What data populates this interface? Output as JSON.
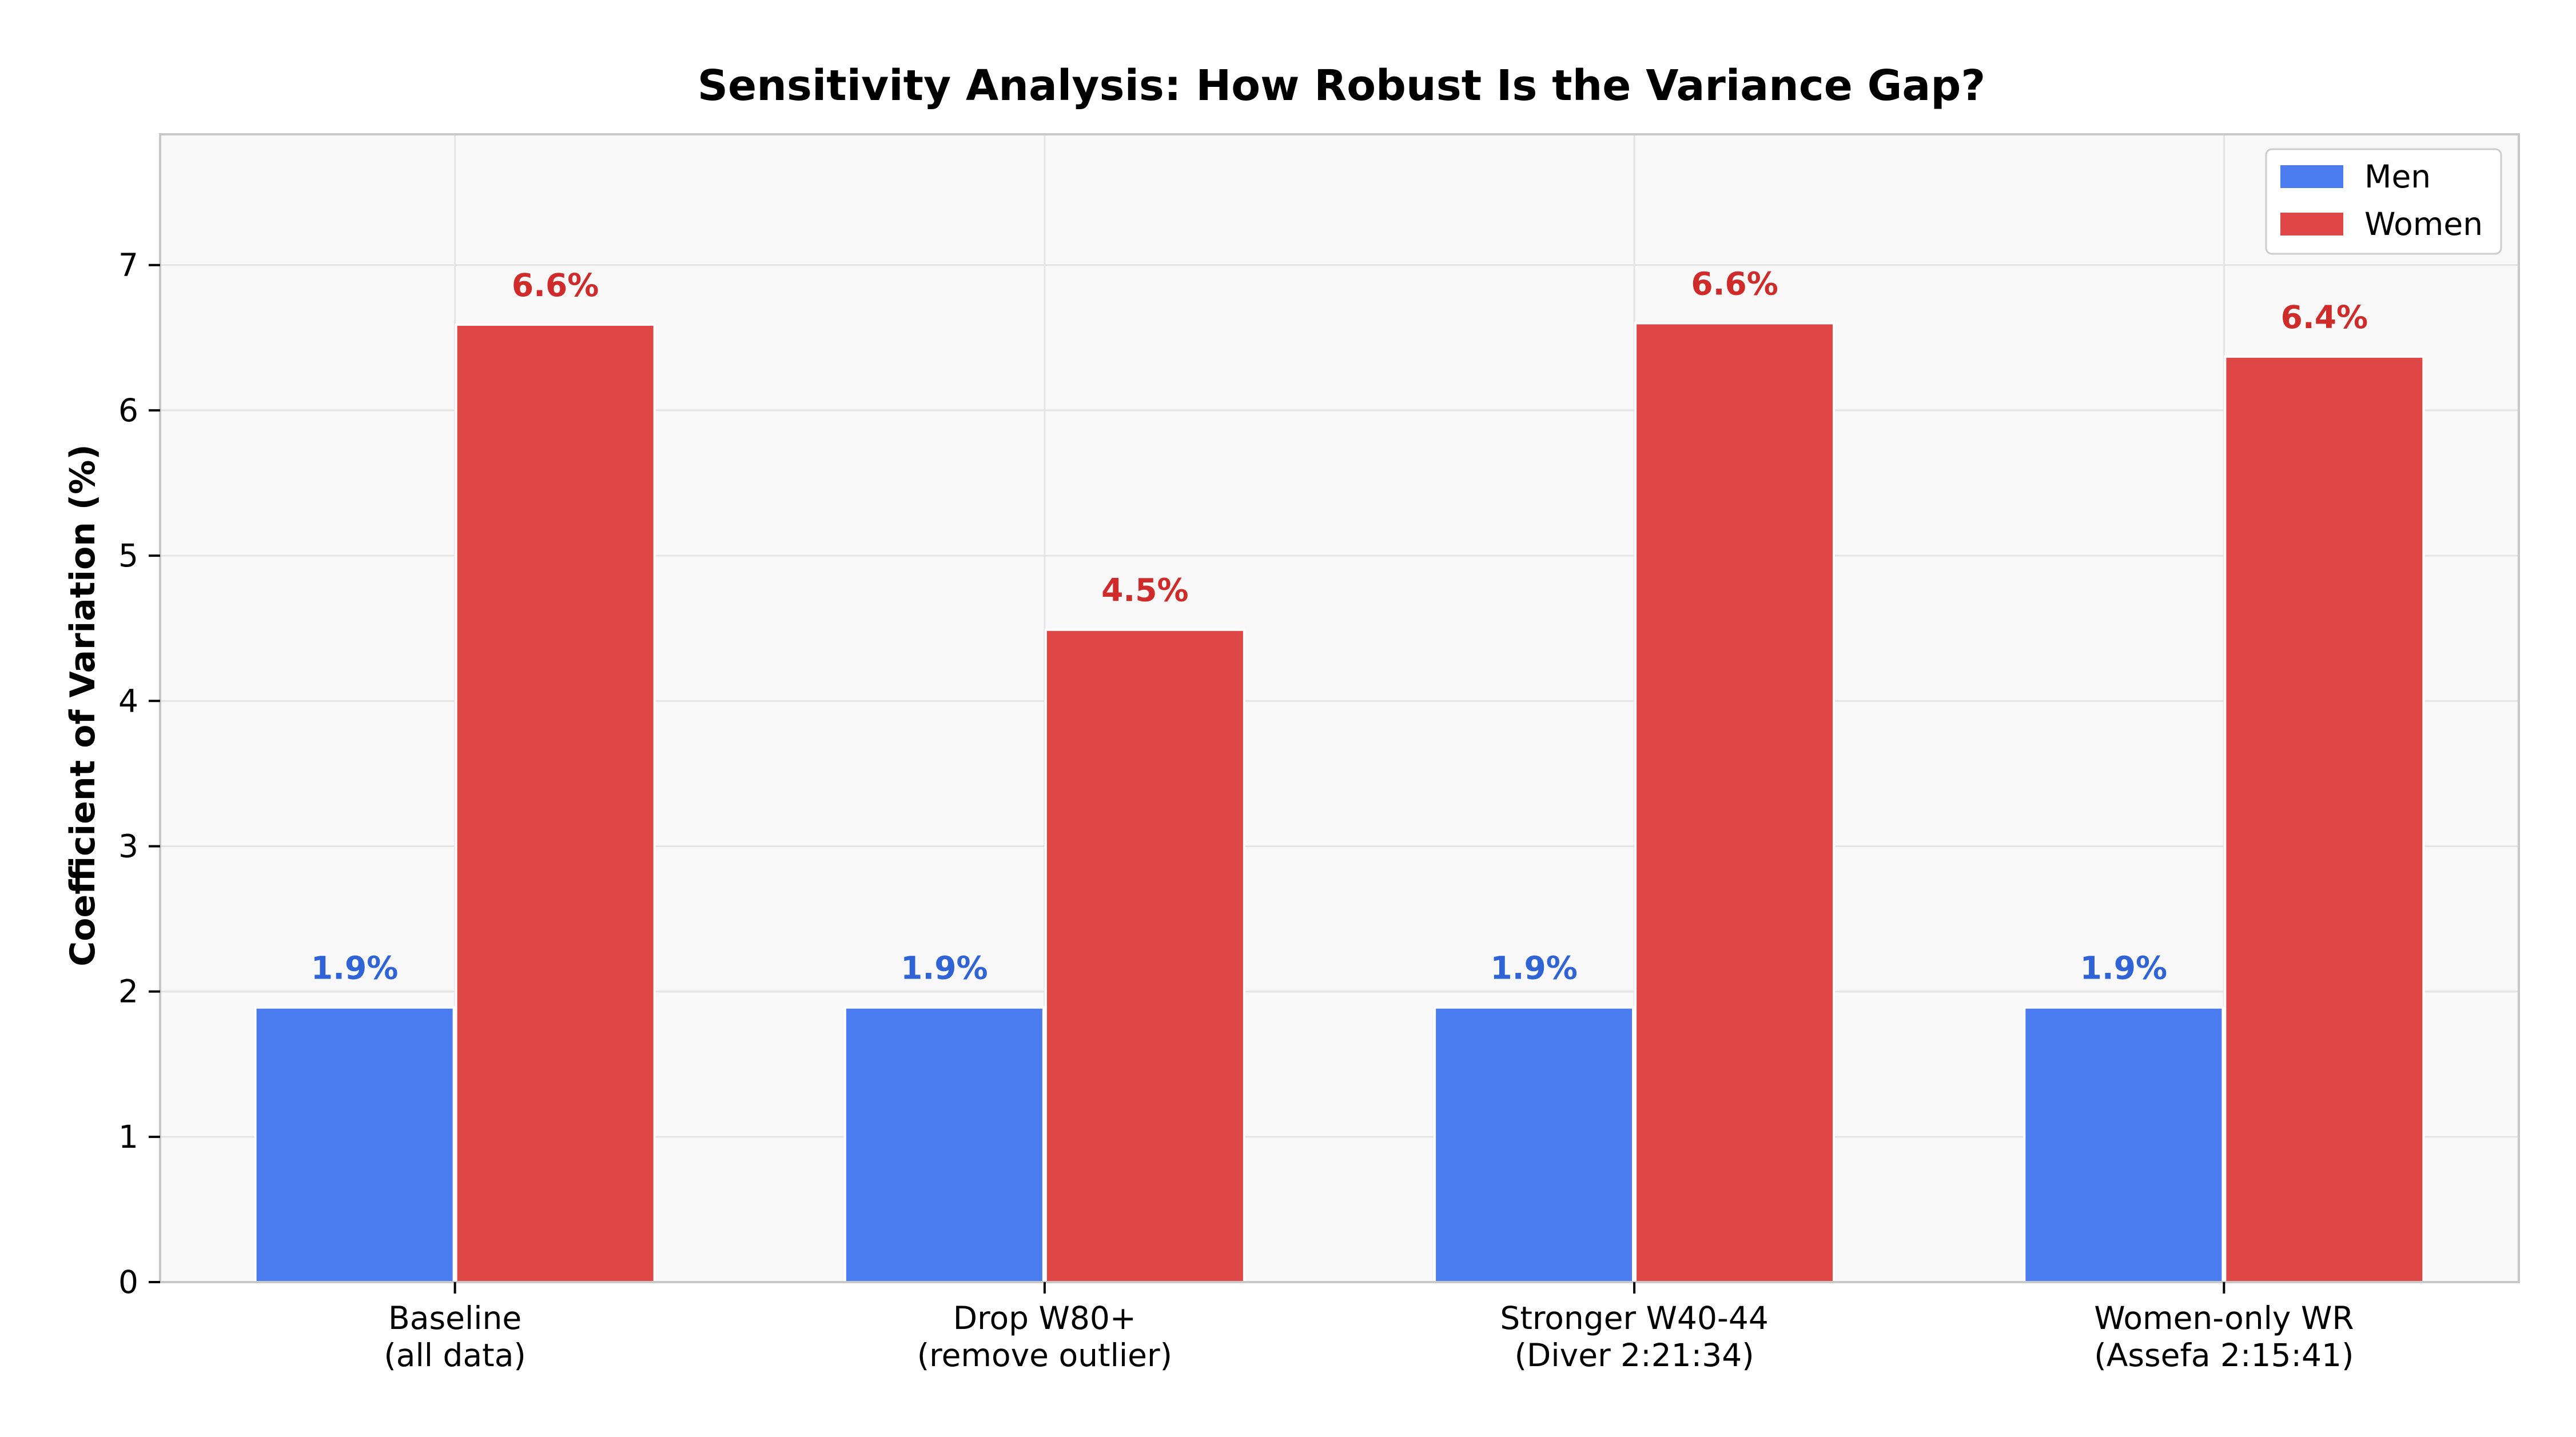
{
  "chart_data": {
    "type": "bar",
    "title": "Sensitivity Analysis: How Robust Is the Variance Gap?",
    "xlabel": "",
    "ylabel": "Coefficient of Variation (%)",
    "ylim": [
      0,
      7.9
    ],
    "yticks": [
      0,
      1,
      2,
      3,
      4,
      5,
      6,
      7
    ],
    "grid": true,
    "legend_position": "top-right",
    "categories": [
      [
        "Baseline",
        "(all data)"
      ],
      [
        "Drop W80+",
        "(remove outlier)"
      ],
      [
        "Stronger W40-44",
        "(Diver 2:21:34)"
      ],
      [
        "Women-only WR",
        "(Assefa 2:15:41)"
      ]
    ],
    "series": [
      {
        "name": "Men",
        "color": "#4a7bef",
        "label_color": "#2f63d6",
        "values": [
          1.89,
          1.89,
          1.89,
          1.89
        ],
        "labels": [
          "1.9%",
          "1.9%",
          "1.9%",
          "1.9%"
        ]
      },
      {
        "name": "Women",
        "color": "#df4646",
        "label_color": "#cf2b2b",
        "values": [
          6.59,
          4.49,
          6.6,
          6.37
        ],
        "labels": [
          "6.6%",
          "4.5%",
          "6.6%",
          "6.4%"
        ]
      }
    ],
    "colors": {
      "plot_background": "#f8f8f8",
      "grid": "#e4e4e4",
      "spine": "#c8c8c8"
    }
  }
}
